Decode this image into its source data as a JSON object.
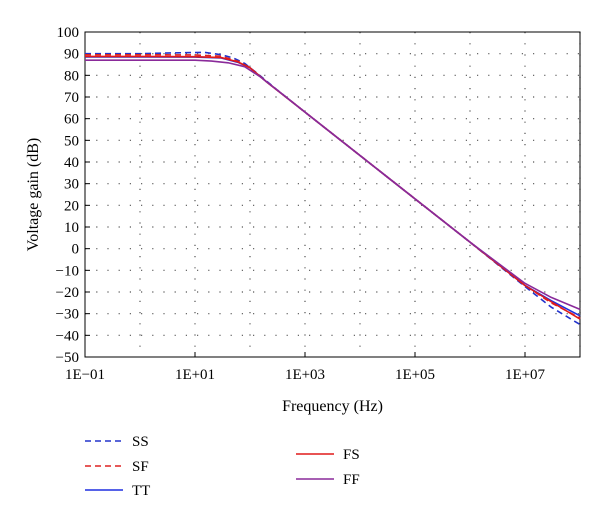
{
  "chart_data": {
    "type": "line",
    "xlabel": "Frequency (Hz)",
    "ylabel": "Voltage gain (dB)",
    "x_scale": "log",
    "xlim": [
      0.1,
      100000000
    ],
    "ylim": [
      -50,
      100
    ],
    "x_ticks": [
      0.1,
      10,
      1000,
      100000,
      10000000
    ],
    "x_tick_labels": [
      "1E−01",
      "1E+01",
      "1E+03",
      "1E+05",
      "1E+07"
    ],
    "y_ticks": [
      -50,
      -40,
      -30,
      -20,
      -10,
      0,
      10,
      20,
      30,
      40,
      50,
      60,
      70,
      80,
      90,
      100
    ],
    "y_tick_labels": [
      "−50",
      "−40",
      "−30",
      "−20",
      "−10",
      "0",
      "10",
      "20",
      "30",
      "40",
      "50",
      "60",
      "70",
      "80",
      "90",
      "100"
    ],
    "grid": "dotted",
    "legend_position": "bottom",
    "series": [
      {
        "name": "SS",
        "color": "#2233cc",
        "dash": "dashed",
        "points": [
          [
            0.1,
            90
          ],
          [
            1,
            90
          ],
          [
            5,
            90.4
          ],
          [
            15,
            90.6
          ],
          [
            30,
            89.5
          ],
          [
            50,
            88
          ],
          [
            80,
            85.5
          ],
          [
            150,
            80
          ],
          [
            300,
            73.6
          ],
          [
            1000,
            63
          ],
          [
            10000,
            43
          ],
          [
            100000,
            23
          ],
          [
            1000000,
            3
          ],
          [
            10000000,
            -17.5
          ],
          [
            30000000,
            -27
          ],
          [
            100000000,
            -35
          ]
        ]
      },
      {
        "name": "SF",
        "color": "#dd2222",
        "dash": "dashed",
        "points": [
          [
            0.1,
            89.5
          ],
          [
            1,
            89.5
          ],
          [
            10,
            89.4
          ],
          [
            30,
            88.8
          ],
          [
            60,
            86.5
          ],
          [
            100,
            83.5
          ],
          [
            200,
            77
          ],
          [
            400,
            71
          ],
          [
            1000,
            63
          ],
          [
            10000,
            43
          ],
          [
            100000,
            23
          ],
          [
            1000000,
            3
          ],
          [
            10000000,
            -17
          ],
          [
            30000000,
            -25
          ],
          [
            100000000,
            -32
          ]
        ]
      },
      {
        "name": "TT",
        "color": "#1f2fe0",
        "dash": "solid",
        "points": [
          [
            0.1,
            88.5
          ],
          [
            1,
            88.5
          ],
          [
            10,
            88.4
          ],
          [
            30,
            88
          ],
          [
            60,
            86
          ],
          [
            100,
            83.5
          ],
          [
            200,
            77
          ],
          [
            400,
            71
          ],
          [
            1000,
            63
          ],
          [
            10000,
            43
          ],
          [
            100000,
            23
          ],
          [
            1000000,
            3
          ],
          [
            10000000,
            -17
          ],
          [
            30000000,
            -24
          ],
          [
            100000000,
            -31
          ]
        ]
      },
      {
        "name": "FS",
        "color": "#e01a1a",
        "dash": "solid",
        "points": [
          [
            0.1,
            88.7
          ],
          [
            1,
            88.7
          ],
          [
            10,
            88.6
          ],
          [
            30,
            88.2
          ],
          [
            60,
            86.2
          ],
          [
            100,
            83.5
          ],
          [
            200,
            77
          ],
          [
            400,
            71
          ],
          [
            1000,
            63
          ],
          [
            10000,
            43
          ],
          [
            100000,
            23
          ],
          [
            1000000,
            3
          ],
          [
            10000000,
            -17
          ],
          [
            30000000,
            -24.5
          ],
          [
            100000000,
            -32.5
          ]
        ]
      },
      {
        "name": "FF",
        "color": "#8a2a9a",
        "dash": "solid",
        "points": [
          [
            0.1,
            87
          ],
          [
            1,
            87
          ],
          [
            10,
            87
          ],
          [
            20,
            86.6
          ],
          [
            40,
            85.8
          ],
          [
            80,
            84
          ],
          [
            150,
            79.5
          ],
          [
            300,
            73.6
          ],
          [
            1000,
            63
          ],
          [
            10000,
            43
          ],
          [
            100000,
            23
          ],
          [
            1000000,
            3
          ],
          [
            10000000,
            -16
          ],
          [
            30000000,
            -22.5
          ],
          [
            100000000,
            -28
          ]
        ]
      }
    ]
  }
}
